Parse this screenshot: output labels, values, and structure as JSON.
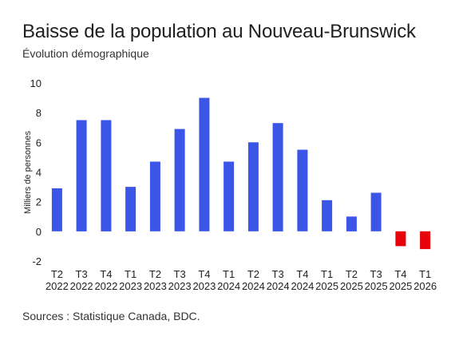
{
  "chart_data": {
    "type": "bar",
    "title": "Baisse de la population au Nouveau-Brunswick",
    "subtitle": "Évolution démographique",
    "ylabel": "Milliers de personnes",
    "xlabel": "",
    "source": "Sources : Statistique Canada, BDC.",
    "ylim": [
      -2,
      10
    ],
    "yticks": [
      -2,
      0,
      2,
      4,
      6,
      8,
      10
    ],
    "grid": false,
    "legend": "none",
    "colors": {
      "positive": "#3b55e6",
      "negative": "#e8000b"
    },
    "categories": [
      {
        "quarter": "T2",
        "year": "2022"
      },
      {
        "quarter": "T3",
        "year": "2022"
      },
      {
        "quarter": "T4",
        "year": "2022"
      },
      {
        "quarter": "T1",
        "year": "2023"
      },
      {
        "quarter": "T2",
        "year": "2023"
      },
      {
        "quarter": "T3",
        "year": "2023"
      },
      {
        "quarter": "T4",
        "year": "2023"
      },
      {
        "quarter": "T1",
        "year": "2024"
      },
      {
        "quarter": "T2",
        "year": "2024"
      },
      {
        "quarter": "T3",
        "year": "2024"
      },
      {
        "quarter": "T4",
        "year": "2024"
      },
      {
        "quarter": "T1",
        "year": "2025"
      },
      {
        "quarter": "T2",
        "year": "2025"
      },
      {
        "quarter": "T3",
        "year": "2025"
      },
      {
        "quarter": "T4",
        "year": "2025"
      },
      {
        "quarter": "T1",
        "year": "2026"
      }
    ],
    "values": [
      2.9,
      7.5,
      7.5,
      3.0,
      4.7,
      6.9,
      9.0,
      4.7,
      6.0,
      7.3,
      5.5,
      2.1,
      1.0,
      2.6,
      -1.0,
      -1.2
    ]
  }
}
